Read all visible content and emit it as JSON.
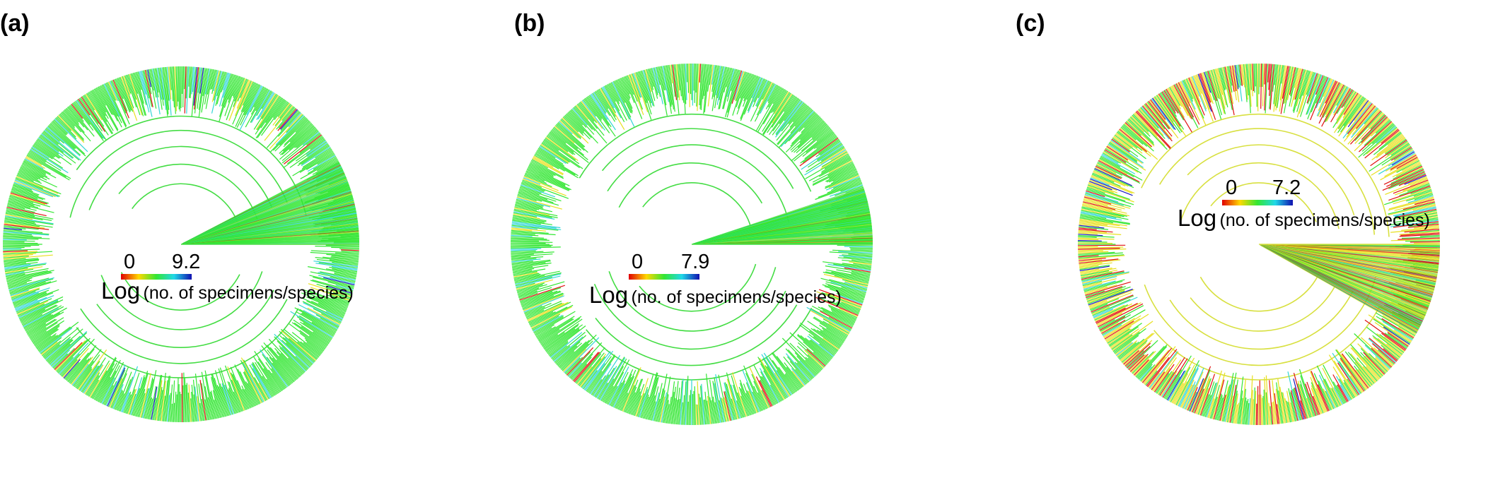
{
  "figure": {
    "panels": [
      {
        "label": "(a)",
        "legend": {
          "min": "0",
          "max": "9.2",
          "title_main": "Log",
          "title_sub": "(no. of specimens/species)"
        },
        "color_mix": {
          "green": 0.78,
          "cyan": 0.12,
          "yellow": 0.07,
          "red": 0.02,
          "blue": 0.01
        }
      },
      {
        "label": "(b)",
        "legend": {
          "min": "0",
          "max": "7.9",
          "title_main": "Log",
          "title_sub": "(no. of specimens/species)"
        },
        "color_mix": {
          "green": 0.8,
          "cyan": 0.1,
          "yellow": 0.08,
          "red": 0.02,
          "blue": 0.0
        }
      },
      {
        "label": "(c)",
        "legend": {
          "min": "0",
          "max": "7.2",
          "title_main": "Log",
          "title_sub": "(no. of specimens/species)"
        },
        "color_mix": {
          "green": 0.35,
          "cyan": 0.08,
          "yellow": 0.37,
          "red": 0.18,
          "blue": 0.02
        }
      }
    ],
    "colorscale": [
      "#e00000",
      "#ffd800",
      "#33e633",
      "#20d8e8",
      "#1010b0"
    ],
    "colors": {
      "red": "#e01010",
      "yellow": "#e8e020",
      "green": "#33e633",
      "cyan": "#33d6d6",
      "blue": "#1818c0",
      "branch_green": "#44dd44",
      "branch_yellow": "#d8e040"
    }
  }
}
